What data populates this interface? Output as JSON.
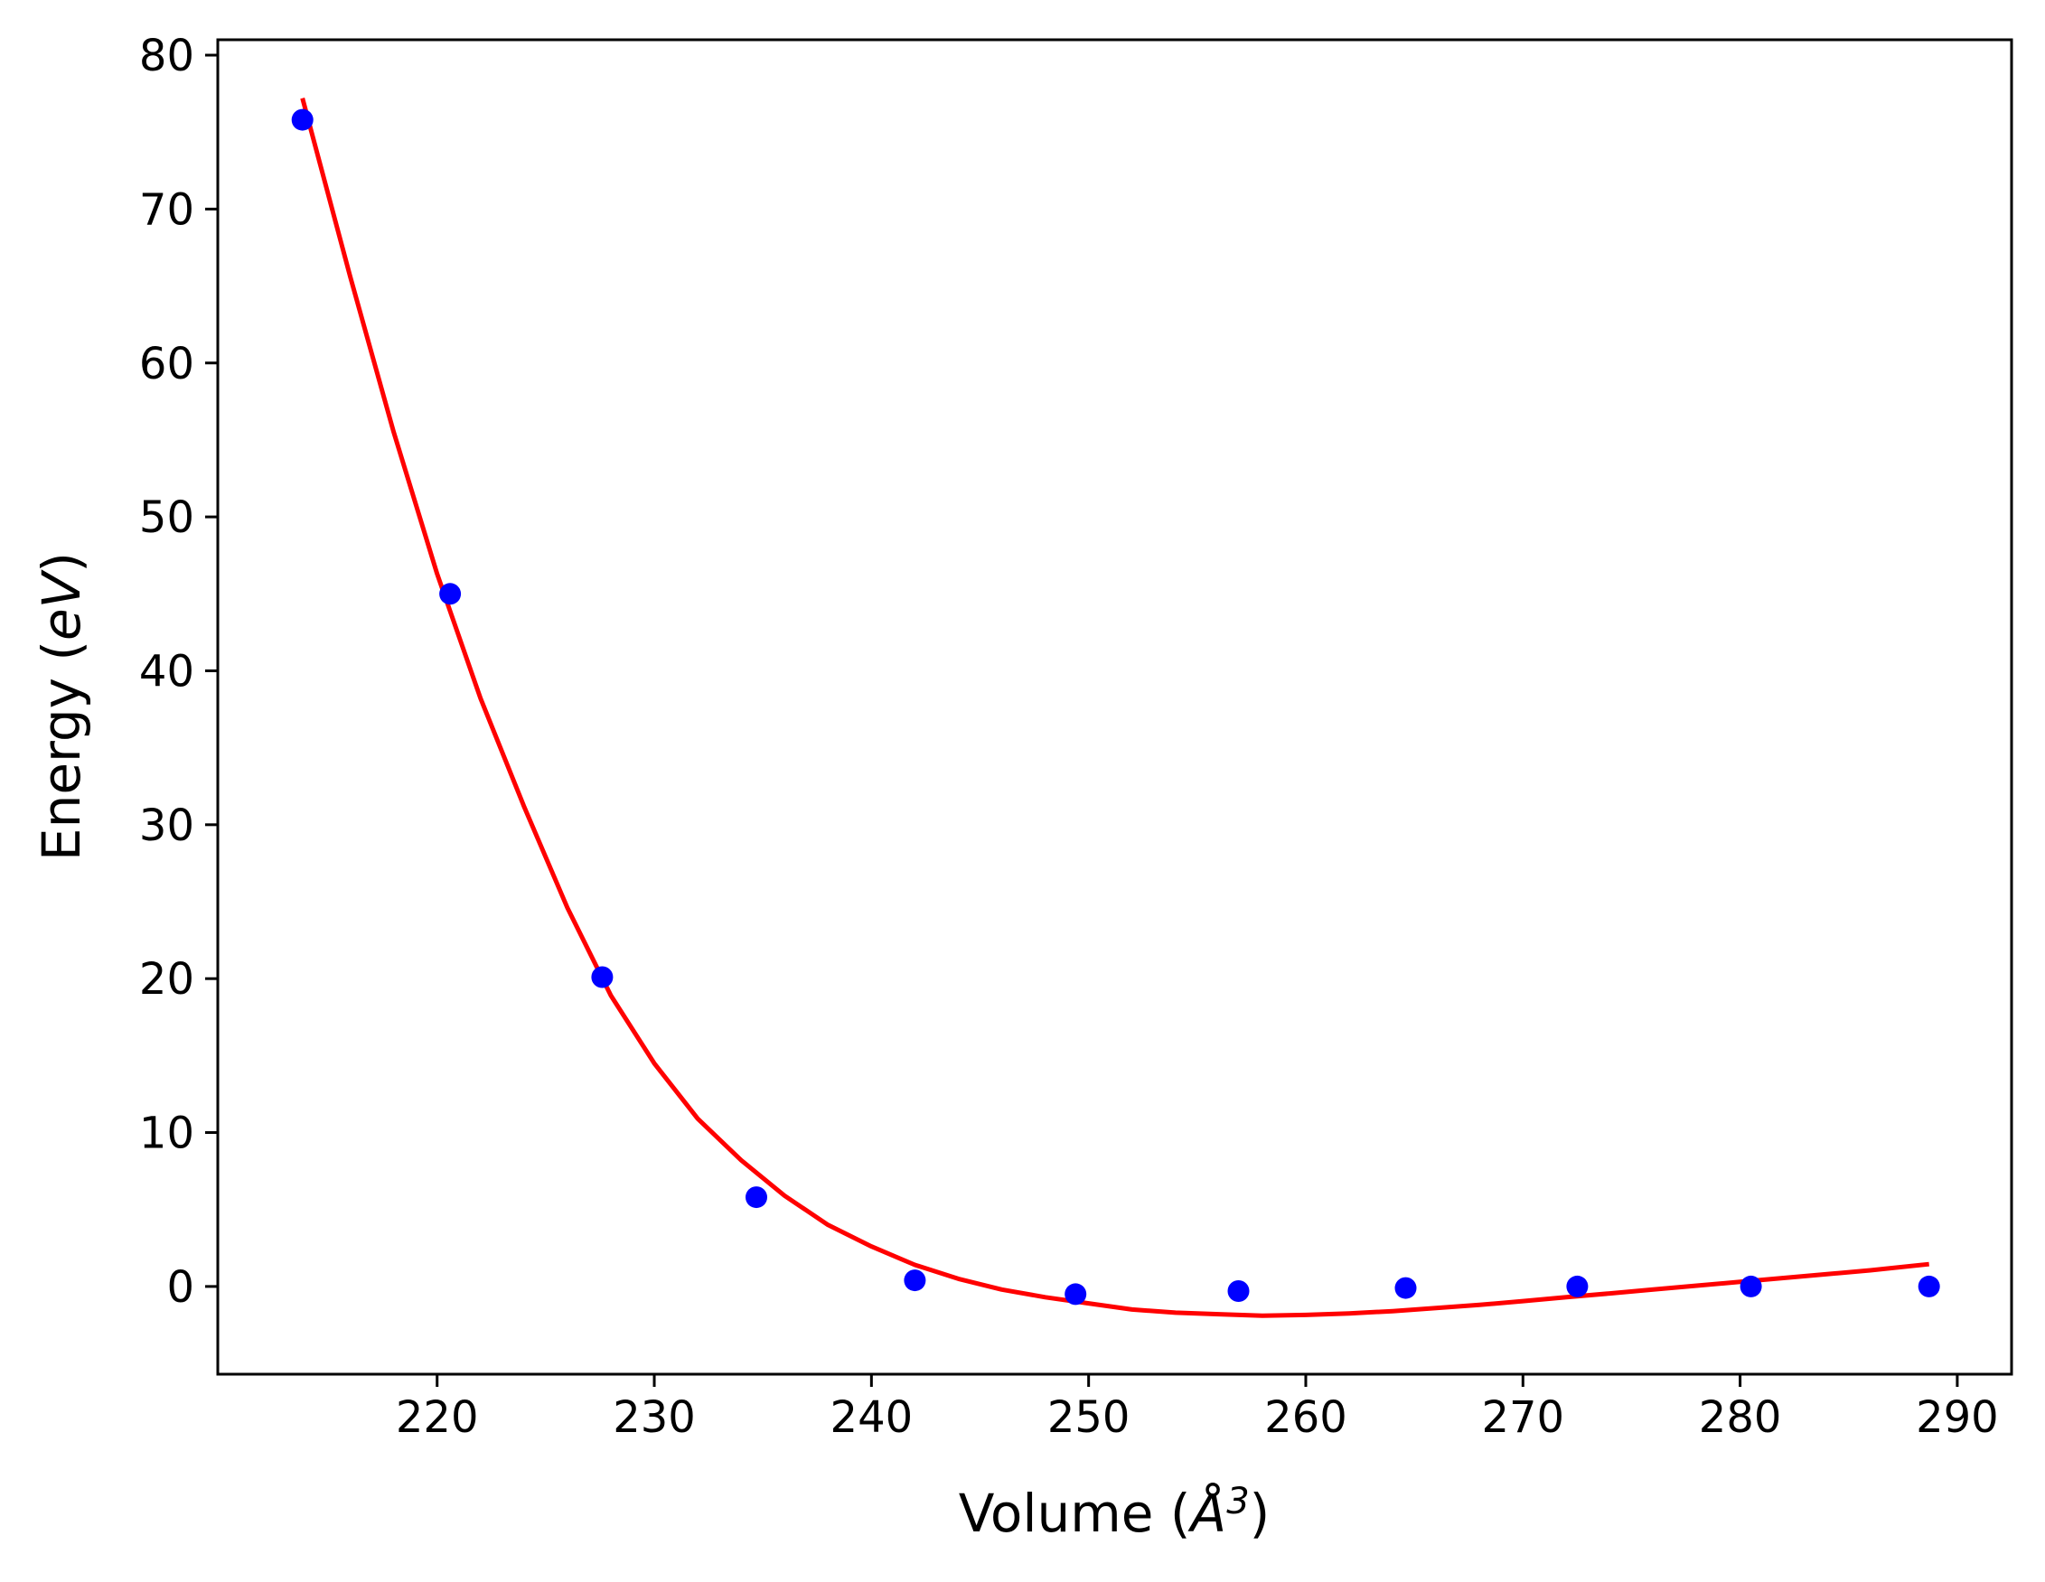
{
  "chart_data": {
    "type": "scatter",
    "title": "",
    "xlabel": {
      "prefix": "Volume (",
      "symbol": "Å",
      "superscript": "3",
      "suffix": ")"
    },
    "ylabel": {
      "prefix": "Energy (",
      "italic": "eV",
      "suffix": ")"
    },
    "xlim": [
      209.9,
      292.5
    ],
    "ylim": [
      -5.7,
      81.0
    ],
    "xticks": [
      220,
      230,
      240,
      250,
      260,
      270,
      280,
      290
    ],
    "yticks": [
      0,
      10,
      20,
      30,
      40,
      50,
      60,
      70,
      80
    ],
    "grid": false,
    "colors": {
      "points": "#0000ff",
      "fit": "#ff0000"
    },
    "series": [
      {
        "kind": "scatter",
        "x": [
          213.8,
          220.6,
          227.6,
          234.7,
          242.0,
          249.4,
          256.9,
          264.6,
          272.5,
          280.5,
          288.7
        ],
        "y": [
          75.8,
          45.0,
          20.1,
          5.8,
          0.4,
          -0.5,
          -0.3,
          -0.1,
          0.0,
          0.0,
          0.0
        ]
      },
      {
        "kind": "line",
        "x": [
          213.8,
          216,
          218,
          220,
          222,
          224,
          226,
          228,
          230,
          232,
          234,
          236,
          238,
          240,
          242,
          244,
          246,
          248,
          250,
          252,
          254,
          256,
          258,
          260,
          262,
          264,
          266,
          268,
          270,
          272,
          274,
          276,
          278,
          280,
          282,
          284,
          286,
          288.7
        ],
        "y": [
          77.2,
          65.6,
          55.5,
          46.3,
          38.2,
          31.2,
          24.6,
          18.9,
          14.5,
          10.9,
          8.2,
          5.9,
          4.0,
          2.6,
          1.4,
          0.5,
          -0.2,
          -0.7,
          -1.1,
          -1.5,
          -1.7,
          -1.8,
          -1.9,
          -1.85,
          -1.75,
          -1.6,
          -1.4,
          -1.2,
          -0.95,
          -0.7,
          -0.45,
          -0.2,
          0.05,
          0.3,
          0.55,
          0.8,
          1.05,
          1.45
        ]
      }
    ]
  }
}
